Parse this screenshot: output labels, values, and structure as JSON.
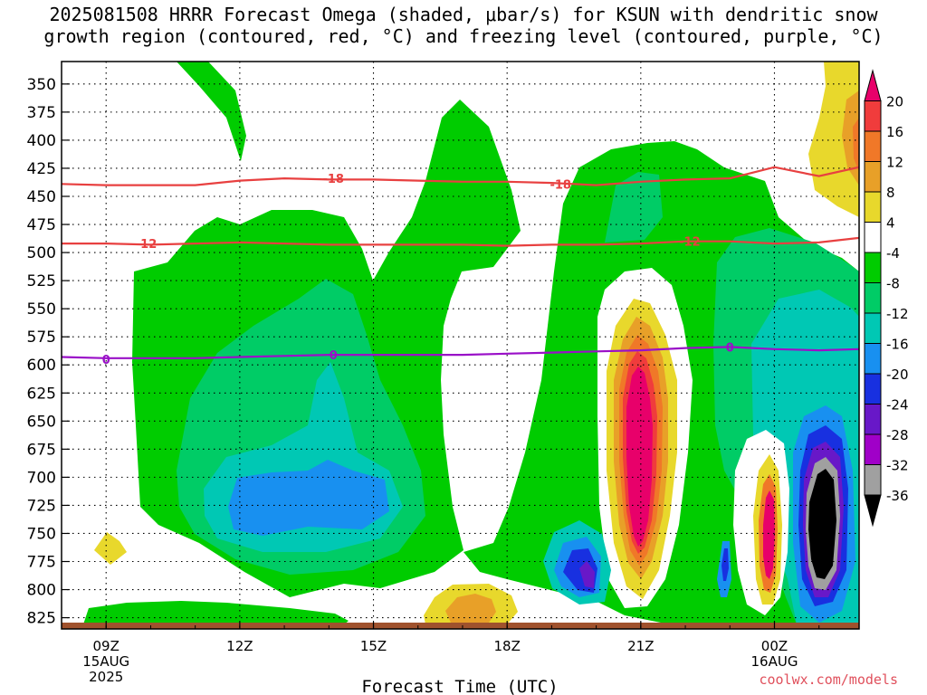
{
  "title_line1": "2025081508 HRRR Forecast Omega (shaded, μbar/s) for KSUN with dendritic snow",
  "title_line2": "growth region (contoured, red, °C) and freezing level (contoured, purple, °C)",
  "credit": "coolwx.com/models",
  "chart_data": {
    "type": "heatmap",
    "title": "2025081508 HRRR Forecast Omega (shaded, μbar/s) for KSUN with dendritic snow growth region (contoured, red, °C) and freezing level (contoured, purple, °C)",
    "xlabel": "Forecast Time (UTC)",
    "ylabel": "",
    "x_range_hours_utc": [
      8,
      25.9
    ],
    "y_range_hPa": [
      330,
      835
    ],
    "y_inverted": true,
    "x_ticks": [
      {
        "label": "09Z",
        "sub": "15AUG",
        "sub2": "2025",
        "hour": 9
      },
      {
        "label": "12Z",
        "sub": "",
        "sub2": "",
        "hour": 12
      },
      {
        "label": "15Z",
        "sub": "",
        "sub2": "",
        "hour": 15
      },
      {
        "label": "18Z",
        "sub": "",
        "sub2": "",
        "hour": 18
      },
      {
        "label": "21Z",
        "sub": "",
        "sub2": "",
        "hour": 21
      },
      {
        "label": "00Z",
        "sub": "16AUG",
        "sub2": "",
        "hour": 24
      }
    ],
    "y_ticks": [
      "350",
      "375",
      "400",
      "425",
      "450",
      "475",
      "500",
      "525",
      "550",
      "575",
      "600",
      "625",
      "650",
      "675",
      "700",
      "725",
      "750",
      "775",
      "800",
      "825"
    ],
    "colorbar": {
      "labels": [
        "20",
        "16",
        "12",
        "8",
        "4",
        "-4",
        "-8",
        "-12",
        "-16",
        "-20",
        "-24",
        "-28",
        "-32",
        "-36"
      ],
      "colors": [
        "#e8006a",
        "#f03c3c",
        "#f07828",
        "#e8a028",
        "#e8d82c",
        "#ffffff",
        "#00cc00",
        "#00cc66",
        "#00c8b4",
        "#1890f0",
        "#1830e0",
        "#6818c8",
        "#a000c8",
        "#a0a0a0",
        "#000000"
      ]
    },
    "contours": [
      {
        "name": "-18",
        "color": "#e84040",
        "points": [
          [
            8,
            439
          ],
          [
            9,
            440
          ],
          [
            10,
            440
          ],
          [
            11,
            440
          ],
          [
            12,
            436
          ],
          [
            13,
            434
          ],
          [
            14,
            435
          ],
          [
            15,
            435
          ],
          [
            16,
            436
          ],
          [
            17,
            437
          ],
          [
            18,
            437
          ],
          [
            19,
            438
          ],
          [
            20,
            440
          ],
          [
            21,
            437
          ],
          [
            22,
            435
          ],
          [
            23,
            434
          ],
          [
            24,
            424
          ],
          [
            25,
            432
          ],
          [
            25.9,
            424
          ]
        ]
      },
      {
        "name": "-12",
        "color": "#e84040",
        "points": [
          [
            8,
            492
          ],
          [
            9,
            492
          ],
          [
            10,
            493
          ],
          [
            11,
            492
          ],
          [
            12,
            491
          ],
          [
            13,
            492
          ],
          [
            14,
            493
          ],
          [
            15,
            493
          ],
          [
            16,
            493
          ],
          [
            17,
            493
          ],
          [
            18,
            494
          ],
          [
            19,
            493
          ],
          [
            20,
            493
          ],
          [
            21,
            492
          ],
          [
            22,
            490
          ],
          [
            23,
            490
          ],
          [
            24,
            492
          ],
          [
            25,
            491
          ],
          [
            25.9,
            487
          ]
        ]
      },
      {
        "name": "0",
        "color": "#9a10c8",
        "points": [
          [
            8,
            593
          ],
          [
            9,
            594
          ],
          [
            10,
            594
          ],
          [
            11,
            594
          ],
          [
            12,
            593
          ],
          [
            13,
            592
          ],
          [
            14,
            591
          ],
          [
            15,
            591
          ],
          [
            16,
            591
          ],
          [
            17,
            591
          ],
          [
            18,
            590
          ],
          [
            19,
            589
          ],
          [
            20,
            588
          ],
          [
            21,
            587
          ],
          [
            22,
            585
          ],
          [
            23,
            584
          ],
          [
            24,
            586
          ],
          [
            25,
            587
          ],
          [
            25.9,
            586
          ]
        ]
      }
    ],
    "contour_labels": [
      {
        "text": "-18",
        "hour": 14.1,
        "hPa": 434
      },
      {
        "text": "-18",
        "hour": 19.2,
        "hPa": 439
      },
      {
        "text": "-12",
        "hour": 9.9,
        "hPa": 492
      },
      {
        "text": "-12",
        "hour": 22.1,
        "hPa": 490
      },
      {
        "text": "0",
        "hour": 9.0,
        "hPa": 595
      },
      {
        "text": "0",
        "hour": 14.1,
        "hPa": 591
      },
      {
        "text": "0",
        "hour": 23.0,
        "hPa": 584
      }
    ]
  }
}
